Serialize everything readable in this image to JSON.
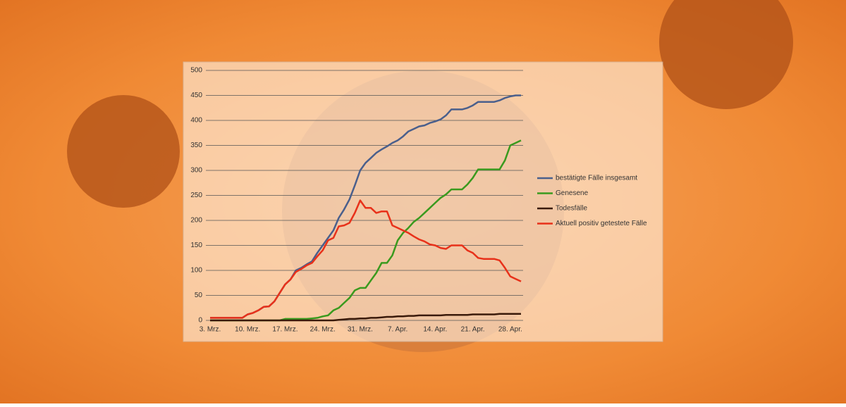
{
  "chart_data": {
    "type": "line",
    "categories": [
      "3. Mrz.",
      null,
      null,
      null,
      null,
      null,
      null,
      "10. Mrz.",
      null,
      null,
      null,
      null,
      null,
      null,
      "17. Mrz.",
      null,
      null,
      null,
      null,
      null,
      null,
      "24. Mrz.",
      null,
      null,
      null,
      null,
      null,
      null,
      "31. Mrz.",
      null,
      null,
      null,
      null,
      null,
      null,
      "7. Apr.",
      null,
      null,
      null,
      null,
      null,
      null,
      "14. Apr.",
      null,
      null,
      null,
      null,
      null,
      null,
      "21. Apr.",
      null,
      null,
      null,
      null,
      null,
      null,
      "28. Apr.",
      null,
      null
    ],
    "series": [
      {
        "name": "bestätigte Fälle insgesamt",
        "color": "#4a5f8c",
        "values": [
          5,
          5,
          5,
          5,
          5,
          5,
          5,
          12,
          15,
          20,
          27,
          28,
          38,
          55,
          72,
          82,
          100,
          105,
          112,
          118,
          135,
          150,
          165,
          180,
          205,
          222,
          242,
          270,
          300,
          315,
          325,
          335,
          342,
          348,
          355,
          360,
          368,
          378,
          383,
          388,
          390,
          395,
          398,
          402,
          410,
          422,
          422,
          422,
          425,
          430,
          437,
          437,
          437,
          437,
          440,
          445,
          448,
          450,
          450
        ]
      },
      {
        "name": "Genesene",
        "color": "#3a9a1e",
        "values": [
          0,
          0,
          0,
          0,
          0,
          0,
          0,
          0,
          0,
          0,
          0,
          0,
          0,
          0,
          3,
          3,
          3,
          3,
          3,
          4,
          5,
          8,
          10,
          20,
          25,
          35,
          45,
          60,
          65,
          65,
          80,
          95,
          115,
          115,
          130,
          160,
          175,
          185,
          197,
          205,
          215,
          225,
          235,
          245,
          252,
          262,
          262,
          262,
          272,
          285,
          302,
          302,
          302,
          302,
          302,
          320,
          350,
          355,
          360
        ]
      },
      {
        "name": "Todesfälle",
        "color": "#3a1a0a",
        "values": [
          0,
          0,
          0,
          0,
          0,
          0,
          0,
          0,
          0,
          0,
          0,
          0,
          0,
          0,
          0,
          0,
          0,
          0,
          0,
          0,
          0,
          0,
          0,
          0,
          1,
          2,
          3,
          3,
          4,
          4,
          5,
          5,
          6,
          7,
          7,
          8,
          8,
          9,
          9,
          10,
          10,
          10,
          10,
          10,
          11,
          11,
          11,
          11,
          11,
          12,
          12,
          12,
          12,
          12,
          13,
          13,
          13,
          13,
          13
        ]
      },
      {
        "name": "Aktuell positiv getestete Fälle",
        "color": "#e8311a",
        "values": [
          5,
          5,
          5,
          5,
          5,
          5,
          5,
          12,
          15,
          20,
          27,
          28,
          38,
          55,
          72,
          82,
          97,
          103,
          110,
          115,
          128,
          140,
          160,
          165,
          188,
          190,
          195,
          215,
          240,
          225,
          225,
          215,
          218,
          218,
          190,
          185,
          180,
          175,
          168,
          162,
          158,
          152,
          150,
          145,
          143,
          150,
          150,
          150,
          140,
          135,
          125,
          123,
          123,
          123,
          120,
          105,
          88,
          83,
          78
        ]
      }
    ],
    "ylim": [
      0,
      500
    ],
    "yticks": [
      0,
      50,
      100,
      150,
      200,
      250,
      300,
      350,
      400,
      450,
      500
    ],
    "grid": true,
    "legend": "right"
  }
}
